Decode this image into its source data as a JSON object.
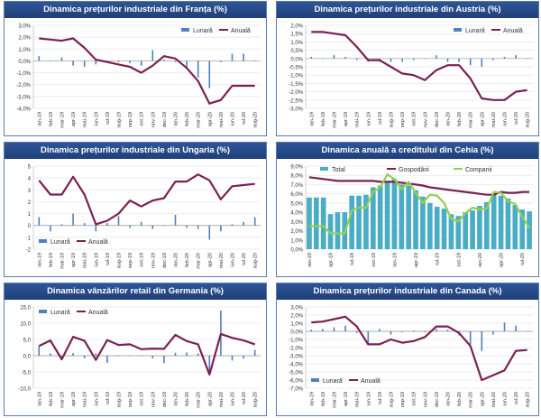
{
  "colors": {
    "monthly": "#4f81bd",
    "annual": "#7b2150",
    "total": "#4bacc6",
    "companies": "#92d050",
    "title_bg": "#1f3f7a"
  },
  "chart_data": [
    {
      "id": "c0",
      "type": "bar+line",
      "title": "Dinamica prețurilor industriale din Franța (%)",
      "legend": [
        "Lunară",
        "Anuală"
      ],
      "legend_pos": "top-right",
      "categories": [
        "ian-19",
        "feb-19",
        "mar-19",
        "apr-19",
        "mai-19",
        "iun-19",
        "iul-19",
        "aug-19",
        "sep-19",
        "oct-19",
        "nov-19",
        "dec-19",
        "ian-20",
        "feb-20",
        "mar-20",
        "apr-20",
        "mai-20",
        "iun-20",
        "iul-20",
        "aug-20"
      ],
      "ylim": [
        -4,
        3
      ],
      "yticks": [
        -4,
        -3,
        -2,
        -1,
        0,
        1,
        2,
        3
      ],
      "ytick_labels": [
        "-4,0%",
        "-3,0%",
        "-2,0%",
        "-1,0%",
        "0,0%",
        "1,0%",
        "2,0%",
        "3,0%"
      ],
      "series": [
        {
          "name": "Lunară",
          "kind": "bar",
          "values": [
            0.4,
            0.0,
            0.3,
            -0.4,
            -0.5,
            -0.3,
            -0.1,
            -0.1,
            -0.2,
            -0.4,
            0.9,
            0.1,
            -0.1,
            -0.7,
            -1.4,
            -2.3,
            -0.1,
            0.6,
            0.6,
            0.0
          ]
        },
        {
          "name": "Anuală",
          "kind": "line",
          "values": [
            1.9,
            1.8,
            1.7,
            1.9,
            1.1,
            0.1,
            -0.1,
            -0.3,
            -0.5,
            -1.0,
            -0.4,
            0.4,
            0.2,
            -0.6,
            -1.7,
            -3.6,
            -3.3,
            -2.1,
            -2.1,
            -2.1
          ]
        }
      ]
    },
    {
      "id": "c1",
      "type": "bar+line",
      "title": "Dinamica prețurilor industriale din Austria (%)",
      "legend": [
        "Lunară",
        "Anuală"
      ],
      "legend_pos": "top-right",
      "categories": [
        "ian-19",
        "feb-19",
        "mar-19",
        "apr-19",
        "mai-19",
        "iun-19",
        "iul-19",
        "aug-19",
        "sep-19",
        "oct-19",
        "nov-19",
        "dec-19",
        "ian-20",
        "feb-20",
        "mar-20",
        "apr-20",
        "mai-20",
        "iun-20",
        "iul-20",
        "aug-20"
      ],
      "ylim": [
        -3,
        2
      ],
      "yticks": [
        -3,
        -2.5,
        -2,
        -1.5,
        -1,
        -0.5,
        0,
        0.5,
        1,
        1.5,
        2
      ],
      "ytick_labels": [
        "-3,0%",
        "-2,5%",
        "-2,0%",
        "-1,5%",
        "-1,0%",
        "-0,5%",
        "0,0%",
        "0,5%",
        "1,0%",
        "1,5%",
        "2,0%"
      ],
      "series": [
        {
          "name": "Lunară",
          "kind": "bar",
          "values": [
            0.1,
            0.0,
            0.2,
            0.1,
            -0.1,
            -0.2,
            -0.2,
            -0.2,
            -0.2,
            -0.1,
            0.0,
            0.2,
            -0.2,
            -0.2,
            -0.4,
            -0.5,
            -0.1,
            0.1,
            0.2,
            0.0
          ]
        },
        {
          "name": "Anuală",
          "kind": "line",
          "values": [
            1.6,
            1.6,
            1.5,
            1.4,
            0.7,
            -0.1,
            -0.1,
            -0.5,
            -0.9,
            -1.0,
            -1.3,
            -0.7,
            -0.4,
            -0.4,
            -1.2,
            -2.4,
            -2.5,
            -2.5,
            -2.0,
            -1.9
          ]
        }
      ]
    },
    {
      "id": "c2",
      "type": "bar+line",
      "title": "Dinamica prețurilor industriale din Ungaria (%)",
      "legend": [
        "Lunară",
        "Anuală"
      ],
      "legend_pos": "bottom-left",
      "categories": [
        "ian-19",
        "feb-19",
        "mar-19",
        "apr-19",
        "mai-19",
        "iun-19",
        "iul-19",
        "aug-19",
        "sep-19",
        "oct-19",
        "nov-19",
        "dec-19",
        "ian-20",
        "feb-20",
        "mar-20",
        "apr-20",
        "mai-20",
        "iun-20",
        "iul-20",
        "aug-20"
      ],
      "ylim": [
        -2,
        5
      ],
      "yticks": [
        -2,
        -1,
        0,
        1,
        2,
        3,
        4,
        5
      ],
      "ytick_labels": [
        "-2",
        "-1",
        "0",
        "1",
        "2",
        "3",
        "4",
        "5"
      ],
      "series": [
        {
          "name": "Lunară",
          "kind": "bar",
          "values": [
            0.7,
            -0.5,
            0.1,
            1.0,
            0.2,
            -0.5,
            0.2,
            0.8,
            -0.2,
            0.3,
            -0.3,
            0.0,
            0.9,
            -0.2,
            -0.3,
            -1.2,
            -0.5,
            0.1,
            0.3,
            0.7
          ]
        },
        {
          "name": "Anuală",
          "kind": "line",
          "values": [
            3.8,
            2.6,
            2.6,
            4.1,
            2.6,
            0.1,
            0.4,
            1.0,
            2.1,
            1.6,
            2.1,
            2.3,
            3.7,
            3.7,
            4.3,
            3.8,
            2.2,
            3.3,
            3.4,
            3.5
          ]
        }
      ]
    },
    {
      "id": "c3",
      "type": "bar+line",
      "title": "Dinamica anuală a creditului din Cehia (%)",
      "legend": [
        "Total",
        "Gospodării",
        "Companii"
      ],
      "legend_pos": "top",
      "categories": [
        "ian-18",
        "feb-18",
        "mar-18",
        "apr-18",
        "mai-18",
        "iun-18",
        "iul-18",
        "aug-18",
        "sep-18",
        "oct-18",
        "nov-18",
        "dec-18",
        "ian-19",
        "feb-19",
        "mar-19",
        "apr-19",
        "mai-19",
        "iun-19",
        "iul-19",
        "aug-19",
        "sep-19",
        "oct-19",
        "nov-19",
        "dec-19",
        "ian-20",
        "feb-20",
        "mar-20",
        "apr-20",
        "mai-20",
        "iun-20",
        "iul-20",
        "aug-20"
      ],
      "tick_every": 3,
      "ylim": [
        0,
        9
      ],
      "yticks": [
        0,
        1,
        2,
        3,
        4,
        5,
        6,
        7,
        8,
        9
      ],
      "ytick_labels": [
        "0,0%",
        "1,0%",
        "2,0%",
        "3,0%",
        "4,0%",
        "5,0%",
        "6,0%",
        "7,0%",
        "8,0%",
        "9,0%"
      ],
      "series": [
        {
          "name": "Total",
          "kind": "bar",
          "values": [
            5.6,
            5.6,
            5.6,
            3.8,
            4.0,
            4.0,
            5.8,
            5.8,
            5.9,
            6.7,
            6.9,
            7.4,
            7.6,
            7.0,
            6.9,
            6.4,
            5.7,
            5.0,
            4.6,
            4.4,
            3.8,
            3.6,
            4.0,
            4.2,
            4.7,
            5.1,
            6.0,
            5.8,
            5.5,
            4.8,
            4.3,
            4.1
          ]
        },
        {
          "name": "Gospodării",
          "kind": "line",
          "values": [
            7.8,
            7.7,
            7.6,
            7.5,
            7.4,
            7.4,
            7.4,
            7.4,
            7.4,
            7.4,
            7.3,
            7.3,
            7.3,
            7.2,
            7.1,
            7.0,
            6.9,
            6.7,
            6.6,
            6.5,
            6.4,
            6.3,
            6.2,
            6.1,
            6.0,
            5.9,
            5.9,
            6.2,
            6.1,
            6.1,
            6.2,
            6.2
          ]
        },
        {
          "name": "Companii",
          "kind": "line",
          "values": [
            2.5,
            2.5,
            2.5,
            1.7,
            1.7,
            1.7,
            4.2,
            4.5,
            4.5,
            6.2,
            6.7,
            8.1,
            7.6,
            6.5,
            7.3,
            6.1,
            5.0,
            5.9,
            5.8,
            5.0,
            3.3,
            3.0,
            3.9,
            4.5,
            4.3,
            4.4,
            6.2,
            6.1,
            5.2,
            4.9,
            3.5,
            2.3
          ]
        }
      ]
    },
    {
      "id": "c4",
      "type": "bar+line",
      "title": "Dinamica vânzărilor retail din Germania (%)",
      "legend": [
        "Lunară",
        "Anuală"
      ],
      "legend_pos": "top-left",
      "categories": [
        "ian-19",
        "feb-19",
        "mar-19",
        "apr-19",
        "mai-19",
        "iun-19",
        "iul-19",
        "aug-19",
        "sep-19",
        "oct-19",
        "nov-19",
        "dec-19",
        "ian-20",
        "feb-20",
        "mar-20",
        "apr-20",
        "mai-20",
        "iun-20",
        "iul-20",
        "aug-20"
      ],
      "ylim": [
        -10,
        15
      ],
      "yticks": [
        -10,
        -5,
        0,
        5,
        10,
        15
      ],
      "ytick_labels": [
        "-10,0",
        "-5,0",
        "0,0",
        "5,0",
        "10,0",
        "15,0"
      ],
      "series": [
        {
          "name": "Lunară",
          "kind": "bar",
          "values": [
            3.0,
            0.7,
            -0.2,
            0.8,
            -0.8,
            0.7,
            -2.2,
            -0.1,
            0.1,
            0.0,
            -0.8,
            -2.3,
            0.9,
            1.0,
            0.7,
            -5.3,
            13.9,
            -1.5,
            -0.9,
            1.8
          ]
        },
        {
          "name": "Anuală",
          "kind": "line",
          "values": [
            3.0,
            4.7,
            -1.1,
            5.8,
            4.6,
            -1.3,
            4.8,
            3.3,
            3.5,
            2.0,
            2.2,
            2.1,
            6.4,
            4.5,
            3.5,
            -5.8,
            6.7,
            5.5,
            4.7,
            3.5
          ]
        }
      ]
    },
    {
      "id": "c5",
      "type": "bar+line",
      "title": "Dinamica prețurilor industriale din Canada (%)",
      "legend": [
        "Lunară",
        "Anuală"
      ],
      "legend_pos": "bottom-left",
      "categories": [
        "ian-19",
        "feb-19",
        "mar-19",
        "apr-19",
        "mai-19",
        "iun-19",
        "iul-19",
        "aug-19",
        "sep-19",
        "oct-19",
        "nov-19",
        "dec-19",
        "ian-20",
        "feb-20",
        "mar-20",
        "apr-20",
        "mai-20",
        "iun-20",
        "iul-20",
        "aug-20"
      ],
      "ylim": [
        -7,
        3
      ],
      "yticks": [
        -7,
        -6,
        -5,
        -4,
        -3,
        -2,
        -1,
        0,
        1,
        2,
        3
      ],
      "ytick_labels": [
        "-7,0%",
        "-6,0%",
        "-5,0%",
        "-4,0%",
        "-3,0%",
        "-2,0%",
        "-1,0%",
        "0,0%",
        "1,0%",
        "2,0%",
        "3,0%"
      ],
      "series": [
        {
          "name": "Lunară",
          "kind": "bar",
          "values": [
            0.2,
            0.3,
            0.5,
            0.7,
            -0.2,
            -1.5,
            0.3,
            -0.4,
            -0.1,
            0.1,
            -0.1,
            0.3,
            0.2,
            -0.5,
            -1.6,
            -2.4,
            -0.4,
            1.1,
            0.7,
            0.0
          ]
        },
        {
          "name": "Anuală",
          "kind": "line",
          "values": [
            1.1,
            1.2,
            1.5,
            1.8,
            0.6,
            -1.6,
            -1.6,
            -1.0,
            -1.4,
            -1.2,
            -0.7,
            0.6,
            0.6,
            -0.2,
            -1.8,
            -6.0,
            -5.4,
            -4.8,
            -2.4,
            -2.3
          ]
        }
      ]
    }
  ]
}
